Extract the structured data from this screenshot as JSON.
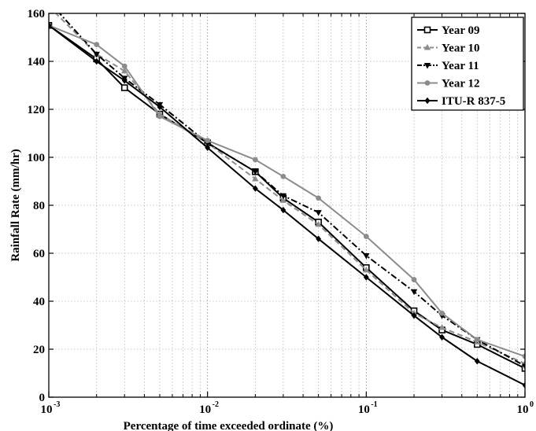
{
  "chart_data": {
    "type": "line",
    "title": "",
    "xlabel": "Percentage of time exceeded ordinate (%)",
    "ylabel": "Rainfall Rate (mm/hr)",
    "xscale": "log",
    "xlim": [
      0.001,
      1
    ],
    "ylim": [
      0,
      160
    ],
    "x_ticks": [
      {
        "base": "10",
        "exp": "-3",
        "value": 0.001
      },
      {
        "base": "10",
        "exp": "-2",
        "value": 0.01
      },
      {
        "base": "10",
        "exp": "-1",
        "value": 0.1
      },
      {
        "base": "10",
        "exp": "0",
        "value": 1
      }
    ],
    "y_ticks": [
      "0",
      "20",
      "40",
      "60",
      "80",
      "100",
      "120",
      "140",
      "160"
    ],
    "grid": true,
    "legend_position": "top-right",
    "x": [
      0.001,
      0.002,
      0.003,
      0.005,
      0.01,
      0.02,
      0.03,
      0.05,
      0.1,
      0.2,
      0.3,
      0.5,
      1
    ],
    "series": [
      {
        "name": "Year 09",
        "color": "#000000",
        "dash": "solid",
        "marker": "square-open",
        "values": [
          155,
          141,
          129,
          118,
          106,
          94,
          83,
          73,
          54,
          36,
          28,
          22,
          12
        ]
      },
      {
        "name": "Year 10",
        "color": "#8c8c8c",
        "dash": "dashed",
        "marker": "triangle-up",
        "values": [
          163,
          143,
          136,
          118,
          106,
          91,
          82,
          72,
          53,
          35,
          29,
          23,
          14
        ]
      },
      {
        "name": "Year 11",
        "color": "#000000",
        "dash": "dashdot",
        "marker": "triangle-down",
        "values": [
          165,
          143,
          133,
          122,
          106,
          94,
          84,
          77,
          59,
          44,
          34,
          24,
          13
        ]
      },
      {
        "name": "Year 12",
        "color": "#8c8c8c",
        "dash": "solid",
        "marker": "dot",
        "values": [
          155,
          147,
          138,
          117,
          107,
          99,
          92,
          83,
          67,
          49,
          35,
          24,
          17
        ]
      },
      {
        "name": "ITU-R 837-5",
        "color": "#000000",
        "dash": "solid",
        "marker": "diamond",
        "values": [
          155,
          140,
          132,
          121,
          104,
          87,
          78,
          66,
          50,
          34,
          25,
          15,
          5
        ]
      }
    ]
  }
}
